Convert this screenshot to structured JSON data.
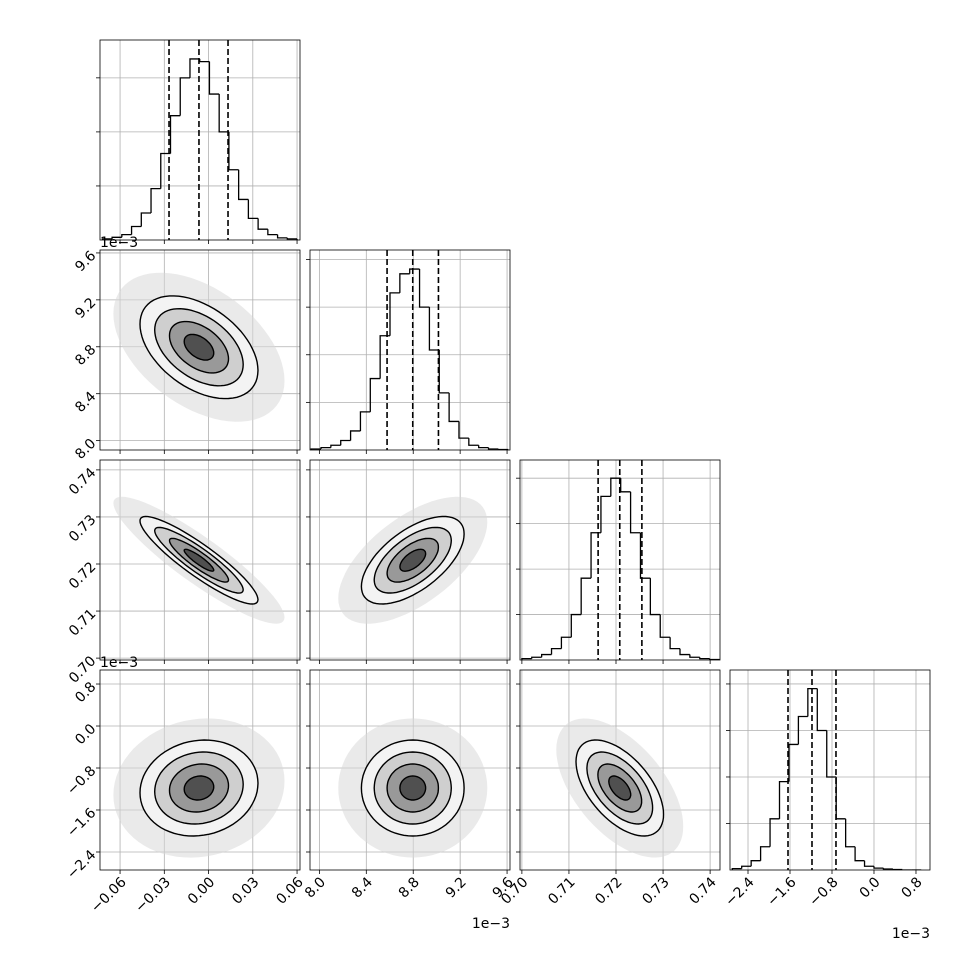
{
  "chart_data": {
    "type": "corner",
    "levels": [
      0.5,
      1,
      1.5,
      2
    ],
    "params": [
      {
        "lim": [
          -0.0736,
          0.062
        ],
        "ticks": [
          {
            "value": -0.06,
            "label": "−0.06"
          },
          {
            "value": -0.03,
            "label": "−0.03"
          },
          {
            "value": 0,
            "label": "0.00"
          },
          0.03,
          0.06
        ],
        "quantiles": [
          -0.0268,
          -0.0065,
          0.0132
        ],
        "bins": [
          -0.072,
          -0.0654,
          -0.0588,
          -0.0522,
          -0.0456,
          -0.039,
          -0.0324,
          -0.0258,
          -0.0192,
          -0.0126,
          -0.006,
          0.0006,
          0.0072,
          0.0138,
          0.0204,
          0.027,
          0.0336,
          0.0402,
          0.0468,
          0.0534,
          0.06
        ],
        "counts": [
          2,
          5,
          10,
          25,
          50,
          95,
          160,
          230,
          300,
          335,
          330,
          270,
          200,
          130,
          75,
          40,
          20,
          10,
          4,
          2
        ],
        "hist_ylim": [
          0,
          370
        ],
        "hist_yticks": [
          100,
          200,
          300
        ]
      },
      {
        "lim": [
          7.92,
          9.625
        ],
        "ticks": [
          {
            "value": 8.0,
            "label": "8.0"
          },
          8.4,
          8.8,
          9.2,
          9.6
        ],
        "offset_label": "1e−3",
        "quantiles": [
          8.577,
          8.796,
          9.015
        ],
        "bins": [
          7.93,
          8.014,
          8.098,
          8.182,
          8.266,
          8.35,
          8.434,
          8.518,
          8.602,
          8.686,
          8.77,
          8.854,
          8.938,
          9.022,
          9.106,
          9.19,
          9.274,
          9.358,
          9.442,
          9.526,
          9.61
        ],
        "counts": [
          2,
          5,
          10,
          20,
          40,
          80,
          150,
          240,
          330,
          370,
          380,
          300,
          210,
          120,
          60,
          25,
          10,
          5,
          2,
          1
        ],
        "hist_ylim": [
          0,
          420
        ],
        "hist_yticks": [
          100,
          200,
          300,
          400
        ]
      },
      {
        "lim": [
          0.6996,
          0.7421
        ],
        "ticks": [
          {
            "value": 0.7,
            "label": "0.70"
          },
          0.71,
          0.72,
          0.73,
          0.74
        ],
        "quantiles": [
          0.7162,
          0.7208,
          0.7255
        ],
        "bins": [
          0.7,
          0.7021,
          0.7042,
          0.7063,
          0.7084,
          0.7105,
          0.7126,
          0.7147,
          0.7168,
          0.7189,
          0.721,
          0.7231,
          0.7252,
          0.7273,
          0.7294,
          0.7315,
          0.7336,
          0.7357,
          0.7378,
          0.7399,
          0.742
        ],
        "counts": [
          3,
          6,
          12,
          25,
          50,
          100,
          180,
          280,
          360,
          400,
          370,
          280,
          180,
          100,
          50,
          25,
          12,
          6,
          3,
          1
        ],
        "hist_ylim": [
          0,
          440
        ],
        "hist_yticks": [
          100,
          200,
          300,
          400
        ]
      },
      {
        "lim": [
          -2.743,
          1.067
        ],
        "ticks": [
          {
            "value": -2.4,
            "label": "−2.4"
          },
          {
            "value": -1.6,
            "label": "−1.6"
          },
          {
            "value": -0.8,
            "label": "−0.8"
          },
          {
            "value": 0,
            "label": "0.0"
          },
          0.8
        ],
        "offset_label": "1e−3",
        "quantiles": [
          -1.638,
          -1.181,
          -0.724
        ],
        "bins": [
          -2.7,
          -2.52,
          -2.34,
          -2.16,
          -1.98,
          -1.8,
          -1.62,
          -1.44,
          -1.26,
          -1.08,
          -0.9,
          -0.72,
          -0.54,
          -0.36,
          -0.18,
          0,
          0.18,
          0.36,
          0.54,
          0.72,
          0.9
        ],
        "counts": [
          3,
          8,
          20,
          50,
          110,
          190,
          270,
          330,
          390,
          300,
          200,
          110,
          50,
          20,
          8,
          4,
          2,
          1,
          0,
          0
        ],
        "hist_ylim": [
          0,
          430
        ],
        "hist_yticks": [
          100,
          200,
          300,
          400
        ]
      }
    ],
    "correlations": [
      [
        -0.45
      ],
      [
        -0.9,
        0.6
      ],
      [
        0.1,
        0.0,
        -0.55
      ]
    ]
  }
}
